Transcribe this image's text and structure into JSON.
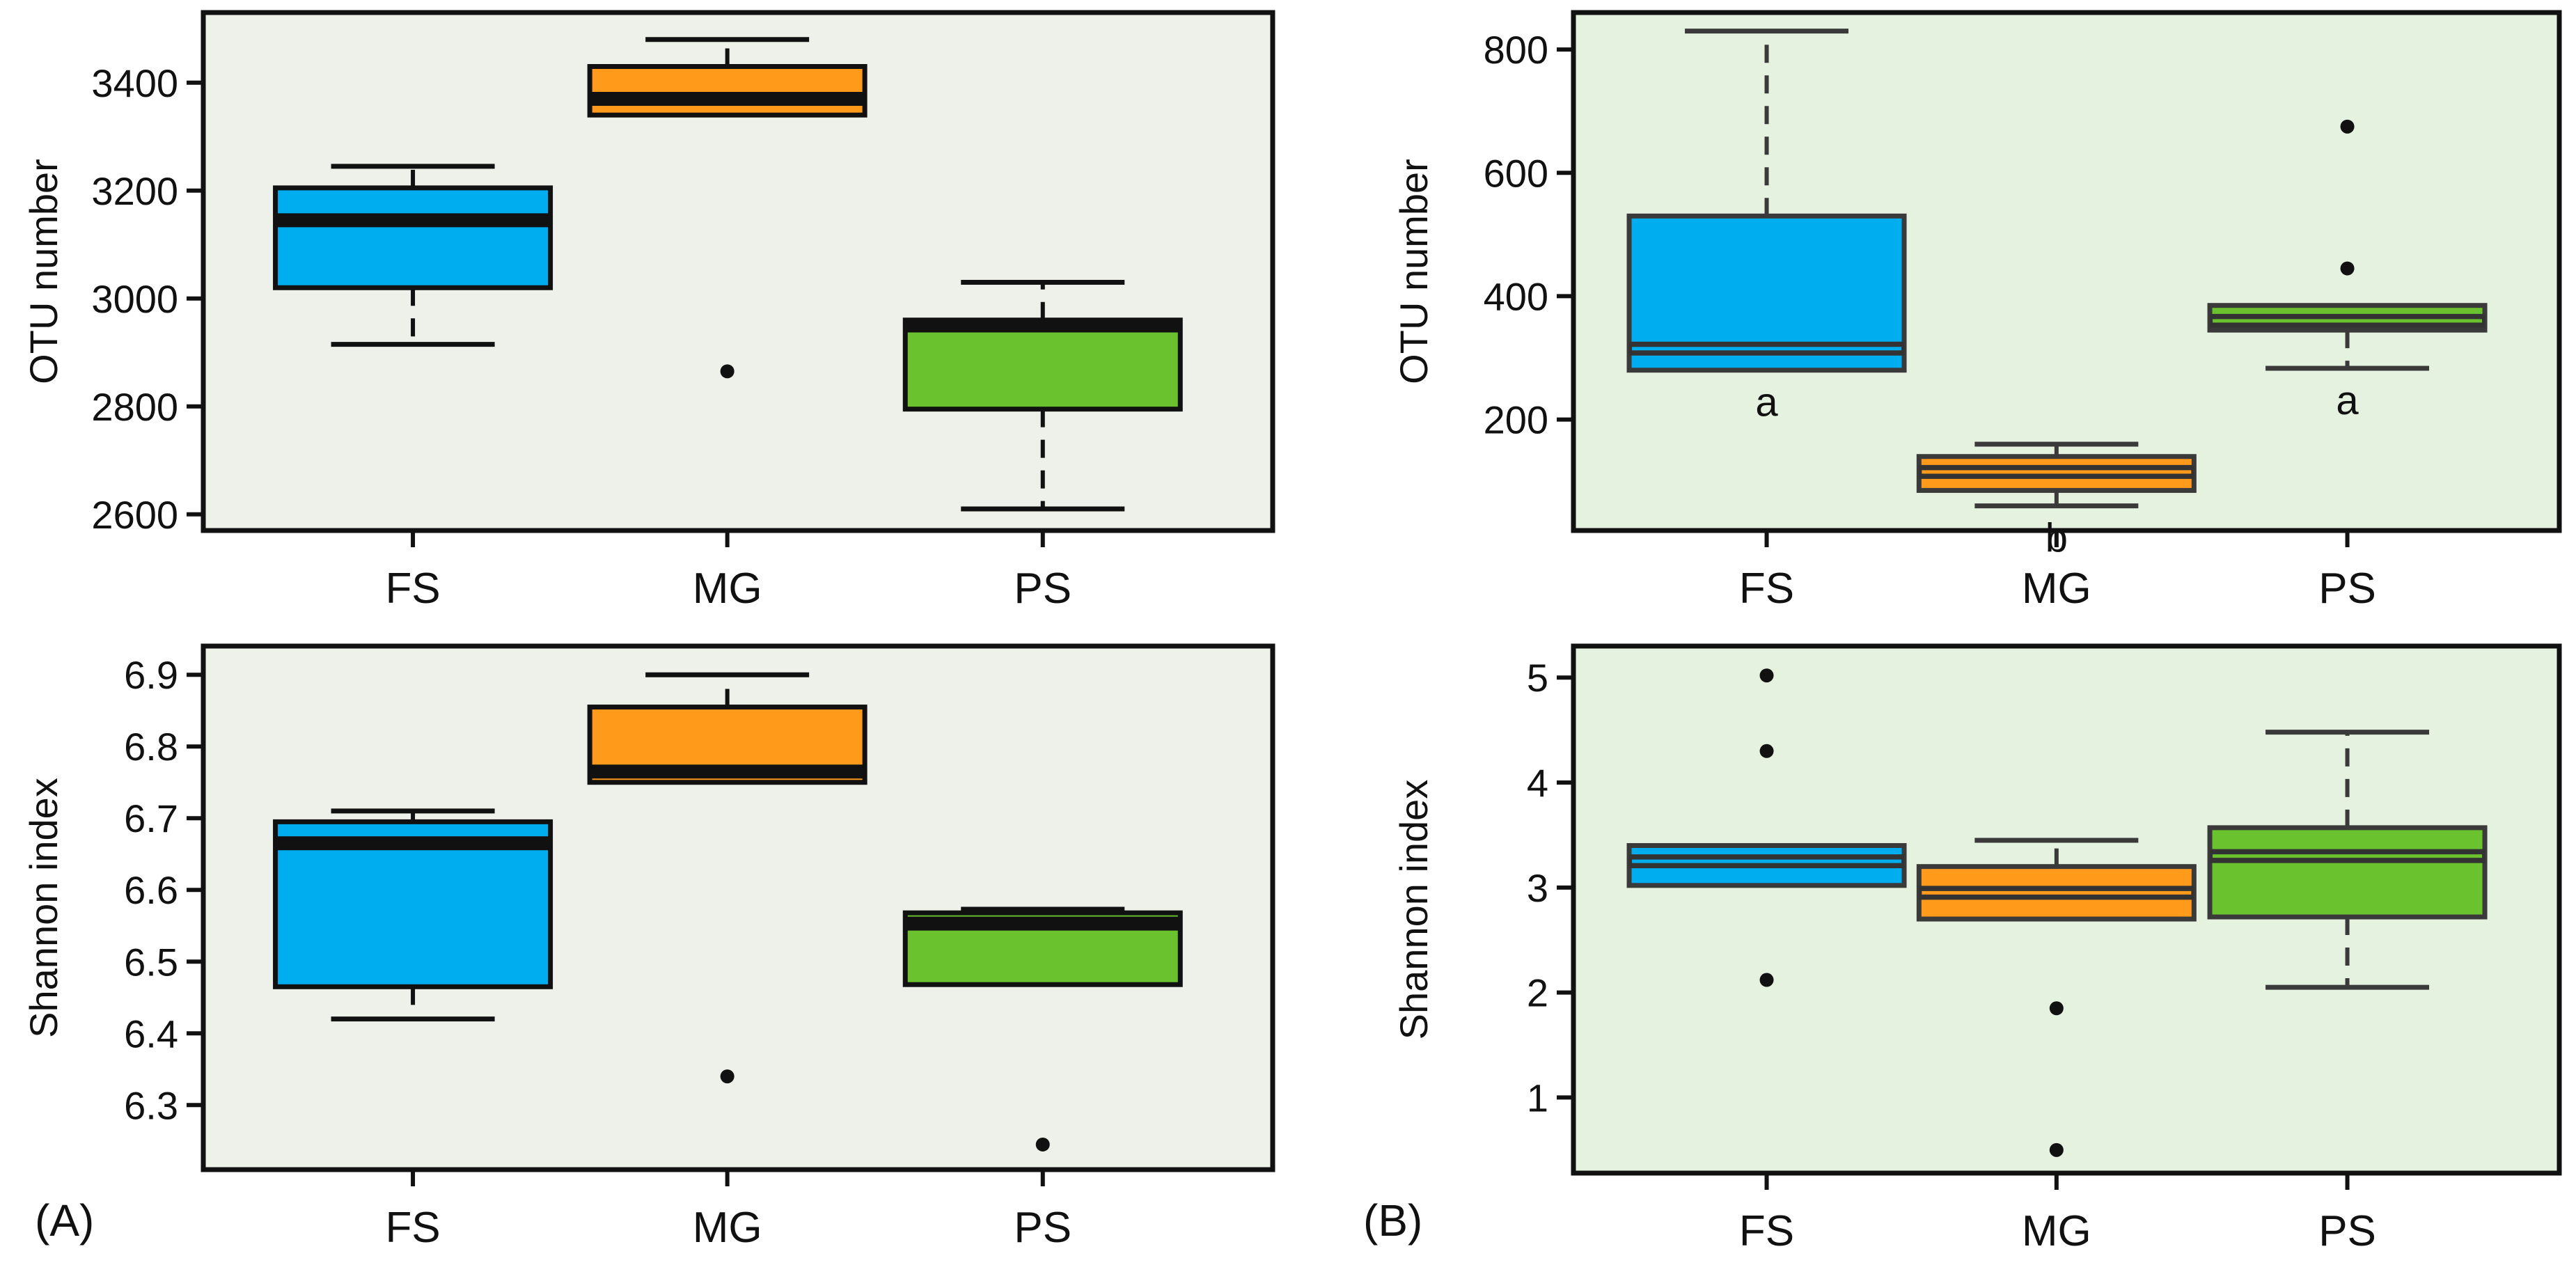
{
  "figure": {
    "panel_tags": [
      "(A)",
      "(B)"
    ]
  },
  "colors": {
    "FS": "#00aeef",
    "MG": "#ff9a1a",
    "PS": "#69c22e",
    "panel_bg_A": "#eef0ea",
    "panel_bg_B": "#e6f2e0"
  },
  "chart_data": [
    {
      "id": "A-top",
      "type": "box",
      "title": "",
      "xlabel": "",
      "ylabel": "OTU number",
      "categories": [
        "FS",
        "MG",
        "PS"
      ],
      "ylim": [
        2570,
        3530
      ],
      "yticks": [
        2600,
        2800,
        3000,
        3200,
        3400
      ],
      "boxes": [
        {
          "category": "FS",
          "whisker_low": 2915,
          "q1": 3020,
          "median": 3145,
          "q3": 3205,
          "whisker_high": 3245,
          "outliers": []
        },
        {
          "category": "MG",
          "whisker_low": 3340,
          "q1": 3340,
          "median": 3370,
          "q3": 3430,
          "whisker_high": 3480,
          "outliers": [
            2865
          ]
        },
        {
          "category": "PS",
          "whisker_low": 2610,
          "q1": 2795,
          "median": 2950,
          "q3": 2960,
          "whisker_high": 3030,
          "outliers": []
        }
      ],
      "letters": []
    },
    {
      "id": "B-top",
      "type": "box",
      "title": "",
      "xlabel": "",
      "ylabel": "OTU number",
      "categories": [
        "FS",
        "MG",
        "PS"
      ],
      "ylim": [
        20,
        860
      ],
      "yticks": [
        200,
        400,
        600,
        800
      ],
      "boxes": [
        {
          "category": "FS",
          "whisker_low": 280,
          "q1": 280,
          "median": 315,
          "q3": 530,
          "whisker_high": 830,
          "outliers": []
        },
        {
          "category": "MG",
          "whisker_low": 60,
          "q1": 85,
          "median": 115,
          "q3": 140,
          "whisker_high": 160,
          "outliers": []
        },
        {
          "category": "PS",
          "whisker_low": 283,
          "q1": 345,
          "median": 360,
          "q3": 385,
          "whisker_high": 385,
          "outliers": [
            445,
            675
          ]
        }
      ],
      "letters": [
        "a",
        "b",
        "a"
      ]
    },
    {
      "id": "A-bottom",
      "type": "box",
      "title": "",
      "xlabel": "",
      "ylabel": "Shannon index",
      "categories": [
        "FS",
        "MG",
        "PS"
      ],
      "ylim": [
        6.21,
        6.94
      ],
      "yticks": [
        6.3,
        6.4,
        6.5,
        6.6,
        6.7,
        6.8,
        6.9
      ],
      "boxes": [
        {
          "category": "FS",
          "whisker_low": 6.42,
          "q1": 6.465,
          "median": 6.665,
          "q3": 6.695,
          "whisker_high": 6.71,
          "outliers": []
        },
        {
          "category": "MG",
          "whisker_low": 6.75,
          "q1": 6.75,
          "median": 6.765,
          "q3": 6.855,
          "whisker_high": 6.9,
          "outliers": [
            6.34
          ]
        },
        {
          "category": "PS",
          "whisker_low": 6.468,
          "q1": 6.468,
          "median": 6.553,
          "q3": 6.568,
          "whisker_high": 6.573,
          "outliers": [
            6.245
          ]
        }
      ],
      "letters": []
    },
    {
      "id": "B-bottom",
      "type": "box",
      "title": "",
      "xlabel": "",
      "ylabel": "Shannon index",
      "categories": [
        "FS",
        "MG",
        "PS"
      ],
      "ylim": [
        0.28,
        5.3
      ],
      "yticks": [
        1,
        2,
        3,
        4,
        5
      ],
      "boxes": [
        {
          "category": "FS",
          "whisker_low": 3.02,
          "q1": 3.02,
          "median": 3.25,
          "q3": 3.4,
          "whisker_high": 3.4,
          "outliers": [
            2.12,
            4.3,
            5.02
          ]
        },
        {
          "category": "MG",
          "whisker_low": 2.7,
          "q1": 2.7,
          "median": 2.95,
          "q3": 3.2,
          "whisker_high": 3.45,
          "outliers": [
            1.85,
            0.5
          ]
        },
        {
          "category": "PS",
          "whisker_low": 2.05,
          "q1": 2.72,
          "median": 3.3,
          "q3": 3.57,
          "whisker_high": 4.48,
          "outliers": []
        }
      ],
      "letters": []
    }
  ]
}
